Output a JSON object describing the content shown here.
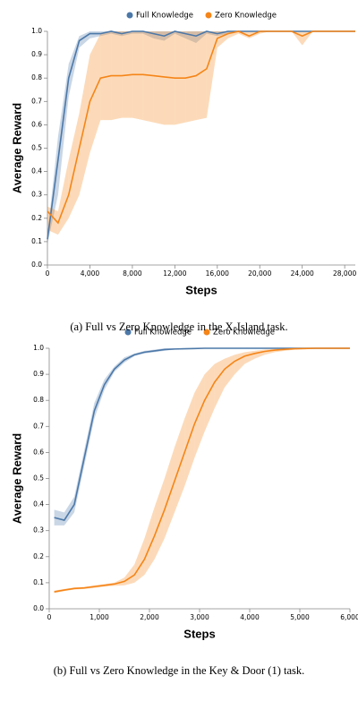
{
  "chart_data": [
    {
      "type": "line",
      "caption": "(a) Full vs Zero Knowledge in the X-Island task.",
      "x_label": "Steps",
      "y_label": "Average Reward",
      "legend": "top",
      "grid": false,
      "x": [
        0,
        1000,
        2000,
        3000,
        4000,
        5000,
        6000,
        7000,
        8000,
        9000,
        10000,
        11000,
        12000,
        13000,
        14000,
        15000,
        16000,
        17000,
        18000,
        19000,
        20000,
        21000,
        22000,
        23000,
        24000,
        25000,
        26000,
        27000,
        28000,
        29000
      ],
      "series": [
        {
          "name": "Full Knowledge",
          "color": "#4c78a8",
          "values": [
            0.11,
            0.45,
            0.8,
            0.96,
            0.99,
            0.99,
            1,
            0.99,
            1,
            1,
            0.99,
            0.98,
            1,
            0.99,
            0.98,
            1,
            0.99,
            1,
            1,
            1,
            1,
            1,
            1,
            1,
            1,
            1,
            1,
            1,
            1,
            1
          ],
          "lower": [
            0.09,
            0.3,
            0.72,
            0.93,
            0.97,
            0.98,
            0.99,
            0.98,
            0.99,
            0.99,
            0.97,
            0.96,
            0.99,
            0.97,
            0.95,
            0.99,
            0.98,
            0.99,
            1,
            1,
            1,
            1,
            1,
            1,
            1,
            1,
            1,
            1,
            1,
            1
          ],
          "upper": [
            0.13,
            0.55,
            0.86,
            0.98,
            1,
            1,
            1,
            1,
            1,
            1,
            1,
            1,
            1,
            1,
            1,
            1,
            1,
            1,
            1,
            1,
            1,
            1,
            1,
            1,
            1,
            1,
            1,
            1,
            1,
            1
          ]
        },
        {
          "name": "Zero Knowledge",
          "color": "#f58518",
          "values": [
            0.23,
            0.18,
            0.3,
            0.5,
            0.7,
            0.8,
            0.81,
            0.81,
            0.815,
            0.815,
            0.81,
            0.805,
            0.8,
            0.8,
            0.81,
            0.84,
            0.97,
            0.99,
            1,
            0.98,
            1,
            1,
            1,
            1,
            0.98,
            1,
            1,
            1,
            1,
            1
          ],
          "lower": [
            0.15,
            0.13,
            0.2,
            0.3,
            0.48,
            0.62,
            0.62,
            0.63,
            0.63,
            0.62,
            0.61,
            0.6,
            0.6,
            0.61,
            0.62,
            0.63,
            0.93,
            0.97,
            0.99,
            0.97,
            0.99,
            1,
            1,
            1,
            0.94,
            1,
            1,
            1,
            1,
            1
          ],
          "upper": [
            0.25,
            0.23,
            0.45,
            0.65,
            0.9,
            0.99,
            1,
            1,
            1,
            1,
            1,
            1,
            1,
            1,
            1,
            1,
            1,
            1,
            1,
            1,
            1,
            1,
            1,
            1,
            1,
            1,
            1,
            1,
            1,
            1
          ]
        }
      ],
      "xlim": [
        0,
        29000
      ],
      "xticks": [
        0,
        {
          "value": 4000,
          "label": "4,000"
        },
        {
          "value": 8000,
          "label": "8,000"
        },
        {
          "value": 12000,
          "label": "12,000"
        },
        {
          "value": 16000,
          "label": "16,000"
        },
        {
          "value": 20000,
          "label": "20,000"
        },
        {
          "value": 24000,
          "label": "24,000"
        },
        {
          "value": 28000,
          "label": "28,000"
        }
      ],
      "ylim": [
        0,
        1
      ],
      "yticks": [
        {
          "value": 0,
          "label": "0.0"
        },
        0.1,
        0.2,
        0.3,
        0.4,
        0.5,
        0.6,
        0.7,
        0.8,
        0.9,
        {
          "value": 1,
          "label": "1.0"
        }
      ]
    },
    {
      "type": "line",
      "caption": "(b) Full vs Zero Knowledge in the Key & Door (1) task.",
      "x_label": "Steps",
      "y_label": "Average Reward",
      "legend": "top",
      "grid": false,
      "x": [
        100,
        300,
        500,
        700,
        900,
        1100,
        1300,
        1500,
        1700,
        1900,
        2100,
        2300,
        2500,
        2700,
        2900,
        3100,
        3300,
        3500,
        3700,
        3900,
        4100,
        4300,
        4500,
        4700,
        4900,
        5100,
        5300,
        5500,
        5700,
        5900,
        6000
      ],
      "series": [
        {
          "name": "Full Knowledge",
          "color": "#4c78a8",
          "values": [
            0.35,
            0.34,
            0.4,
            0.58,
            0.76,
            0.86,
            0.92,
            0.955,
            0.975,
            0.985,
            0.99,
            0.995,
            0.997,
            0.998,
            0.999,
            1,
            1,
            1,
            1,
            1,
            1,
            1,
            1,
            1,
            1,
            1,
            1,
            1,
            1,
            1,
            1
          ],
          "lower": [
            0.32,
            0.32,
            0.37,
            0.55,
            0.73,
            0.84,
            0.91,
            0.945,
            0.97,
            0.98,
            0.985,
            0.99,
            0.995,
            0.997,
            0.998,
            1,
            1,
            1,
            1,
            1,
            1,
            1,
            1,
            1,
            1,
            1,
            1,
            1,
            1,
            1,
            1
          ],
          "upper": [
            0.38,
            0.37,
            0.43,
            0.61,
            0.79,
            0.88,
            0.93,
            0.965,
            0.98,
            0.99,
            0.995,
            1,
            1,
            1,
            1,
            1,
            1,
            1,
            1,
            1,
            1,
            1,
            1,
            1,
            1,
            1,
            1,
            1,
            1,
            1,
            1
          ]
        },
        {
          "name": "Zero Knowledge",
          "color": "#f58518",
          "values": [
            0.065,
            0.072,
            0.078,
            0.08,
            0.085,
            0.09,
            0.095,
            0.105,
            0.13,
            0.19,
            0.28,
            0.38,
            0.49,
            0.6,
            0.71,
            0.8,
            0.87,
            0.92,
            0.95,
            0.97,
            0.98,
            0.988,
            0.993,
            0.996,
            0.998,
            0.999,
            1,
            1,
            1,
            1,
            1
          ],
          "lower": [
            0.06,
            0.068,
            0.074,
            0.076,
            0.08,
            0.085,
            0.088,
            0.09,
            0.1,
            0.13,
            0.19,
            0.27,
            0.37,
            0.47,
            0.58,
            0.68,
            0.77,
            0.85,
            0.9,
            0.94,
            0.96,
            0.975,
            0.985,
            0.99,
            0.995,
            0.997,
            0.998,
            1,
            1,
            1,
            1
          ],
          "upper": [
            0.07,
            0.076,
            0.082,
            0.084,
            0.09,
            0.095,
            0.1,
            0.12,
            0.17,
            0.27,
            0.39,
            0.5,
            0.62,
            0.73,
            0.83,
            0.9,
            0.94,
            0.96,
            0.975,
            0.985,
            0.99,
            0.995,
            0.998,
            1,
            1,
            1,
            1,
            1,
            1,
            1,
            1
          ]
        }
      ],
      "xlim": [
        0,
        6000
      ],
      "xticks": [
        0,
        {
          "value": 1000,
          "label": "1,000"
        },
        {
          "value": 2000,
          "label": "2,000"
        },
        {
          "value": 3000,
          "label": "3,000"
        },
        {
          "value": 4000,
          "label": "4,000"
        },
        {
          "value": 5000,
          "label": "5,000"
        },
        {
          "value": 6000,
          "label": "6,000"
        }
      ],
      "ylim": [
        0,
        1
      ],
      "yticks": [
        {
          "value": 0,
          "label": "0.0"
        },
        0.1,
        0.2,
        0.3,
        0.4,
        0.5,
        0.6,
        0.7,
        0.8,
        0.9,
        {
          "value": 1,
          "label": "1.0"
        }
      ]
    }
  ]
}
